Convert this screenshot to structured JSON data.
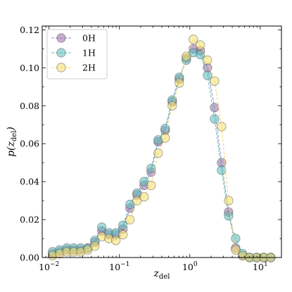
{
  "chart_data": {
    "type": "line",
    "xlabel": "z",
    "xlabel_sub": "del",
    "ylabel_pre": "p(z",
    "ylabel_sub": "del",
    "ylabel_post": ")",
    "xscale": "log",
    "xlim": [
      0.008,
      20
    ],
    "ylim": [
      0,
      0.122
    ],
    "x_ticks": [
      {
        "value": 0.01,
        "base": "10",
        "exp": "−2"
      },
      {
        "value": 0.1,
        "base": "10",
        "exp": "−1"
      },
      {
        "value": 1,
        "base": "10",
        "exp": "0"
      },
      {
        "value": 10,
        "base": "10",
        "exp": "1"
      }
    ],
    "y_ticks": [
      {
        "value": 0.0,
        "label": "0.00"
      },
      {
        "value": 0.02,
        "label": "0.02"
      },
      {
        "value": 0.04,
        "label": "0.04"
      },
      {
        "value": 0.06,
        "label": "0.06"
      },
      {
        "value": 0.08,
        "label": "0.08"
      },
      {
        "value": 0.1,
        "label": "0.10"
      },
      {
        "value": 0.12,
        "label": "0.12"
      }
    ],
    "legend_position": "top-left",
    "series": [
      {
        "name": "0H",
        "color": "#9b6aa8",
        "line_color": "#8e8fc4",
        "x": [
          0.0112,
          0.0141,
          0.0178,
          0.0224,
          0.0282,
          0.0355,
          0.0447,
          0.0562,
          0.0708,
          0.0891,
          0.112,
          0.141,
          0.178,
          0.224,
          0.282,
          0.355,
          0.447,
          0.562,
          0.708,
          0.891,
          1.12,
          1.41,
          1.78,
          2.24,
          2.82,
          3.55,
          4.47,
          5.62,
          7.08,
          8.91,
          11.2,
          14.1
        ],
        "y": [
          0.002,
          0.003,
          0.004,
          0.004,
          0.004,
          0.005,
          0.008,
          0.014,
          0.012,
          0.012,
          0.015,
          0.026,
          0.033,
          0.038,
          0.045,
          0.061,
          0.067,
          0.082,
          0.094,
          0.105,
          0.11,
          0.109,
          0.1,
          0.079,
          0.05,
          0.024,
          0.005,
          0.001,
          0.0,
          0.0,
          0.0,
          0.0
        ]
      },
      {
        "name": "1H",
        "color": "#5bbcbc",
        "line_color": "#5bbcbc",
        "x": [
          0.0112,
          0.0141,
          0.0178,
          0.0224,
          0.0282,
          0.0355,
          0.0447,
          0.0562,
          0.0708,
          0.0891,
          0.112,
          0.141,
          0.178,
          0.224,
          0.282,
          0.355,
          0.447,
          0.562,
          0.708,
          0.891,
          1.12,
          1.41,
          1.78,
          2.24,
          2.82,
          3.55,
          4.47,
          5.62,
          7.08,
          8.91,
          11.2,
          14.1
        ],
        "y": [
          0.003,
          0.004,
          0.005,
          0.005,
          0.005,
          0.005,
          0.009,
          0.016,
          0.013,
          0.013,
          0.017,
          0.028,
          0.034,
          0.04,
          0.047,
          0.062,
          0.068,
          0.083,
          0.095,
          0.104,
          0.108,
          0.107,
          0.096,
          0.073,
          0.046,
          0.022,
          0.01,
          0.002,
          0.0,
          0.0,
          0.0,
          0.0
        ]
      },
      {
        "name": "2H",
        "color": "#f4e06c",
        "line_color": "#f0dc70",
        "x": [
          0.0112,
          0.0141,
          0.0178,
          0.0224,
          0.0282,
          0.0355,
          0.0447,
          0.0562,
          0.0708,
          0.0891,
          0.112,
          0.141,
          0.178,
          0.224,
          0.282,
          0.355,
          0.447,
          0.562,
          0.708,
          0.891,
          1.12,
          1.41,
          1.78,
          2.24,
          2.82,
          3.55,
          4.47,
          5.62,
          7.08,
          8.91,
          11.2,
          14.1
        ],
        "y": [
          0.001,
          0.002,
          0.003,
          0.003,
          0.003,
          0.004,
          0.006,
          0.011,
          0.01,
          0.009,
          0.012,
          0.02,
          0.03,
          0.032,
          0.038,
          0.055,
          0.063,
          0.08,
          0.092,
          0.106,
          0.115,
          0.112,
          0.104,
          0.093,
          0.069,
          0.03,
          0.004,
          0.001,
          0.0,
          0.0,
          0.0,
          0.0
        ]
      }
    ]
  }
}
